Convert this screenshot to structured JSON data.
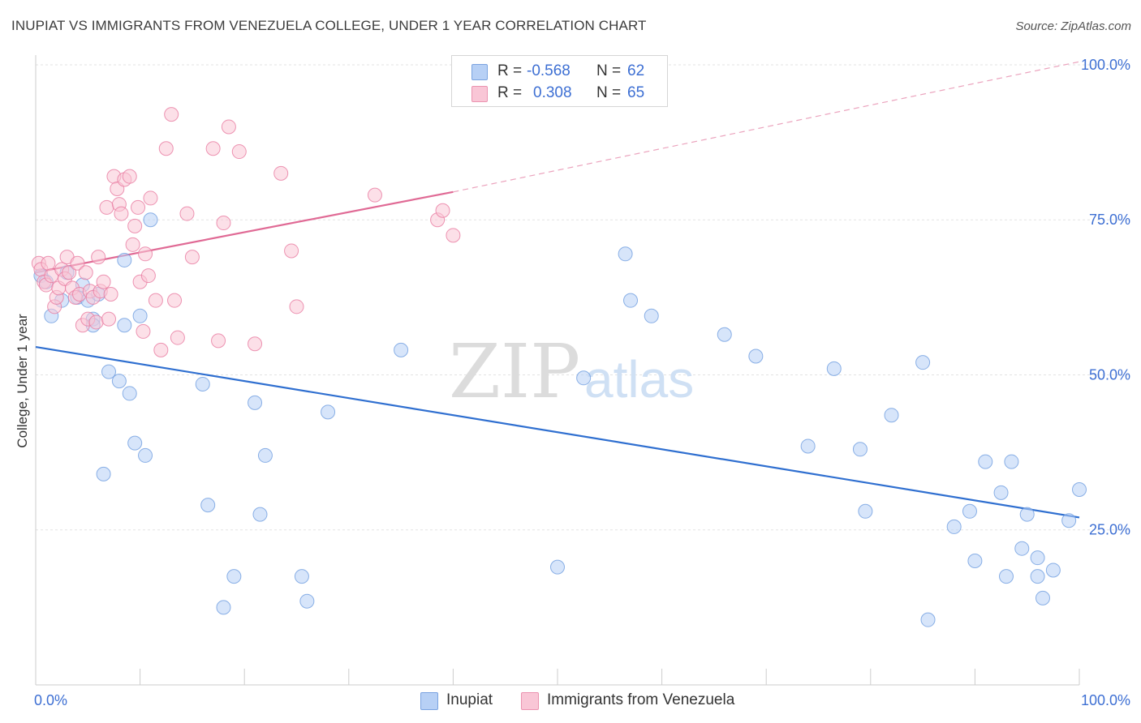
{
  "title": "INUPIAT VS IMMIGRANTS FROM VENEZUELA COLLEGE, UNDER 1 YEAR CORRELATION CHART",
  "source": "Source: ZipAtlas.com",
  "watermark": {
    "zip": "ZIP",
    "atlas": "atlas"
  },
  "legend_top": {
    "rows": [
      {
        "r_label": "R =",
        "r_value": "-0.568",
        "n_label": "N =",
        "n_value": "62",
        "fill": "#b7d0f5",
        "stroke": "#7aa3e0"
      },
      {
        "r_label": "R =",
        "r_value": "0.308",
        "n_label": "N =",
        "n_value": "65",
        "fill": "#f9c6d6",
        "stroke": "#eb93b0"
      }
    ]
  },
  "legend_bottom": [
    {
      "label": "Inupiat",
      "fill": "#b7d0f5",
      "stroke": "#7aa3e0"
    },
    {
      "label": "Immigrants from Venezuela",
      "fill": "#f9c6d6",
      "stroke": "#eb93b0"
    }
  ],
  "chart_data": {
    "type": "scatter",
    "title": "INUPIAT VS IMMIGRANTS FROM VENEZUELA COLLEGE, UNDER 1 YEAR CORRELATION CHART",
    "xlabel": "",
    "ylabel": "College, Under 1 year",
    "xlim": [
      0,
      100
    ],
    "ylim": [
      0,
      103
    ],
    "x_tick_labels": [
      "0.0%",
      "100.0%"
    ],
    "y_ticks": [
      25,
      50,
      75,
      100
    ],
    "y_tick_labels": [
      "25.0%",
      "50.0%",
      "75.0%",
      "100.0%"
    ],
    "grid": true,
    "legend_placement": "top-center",
    "series": [
      {
        "name": "Inupiat",
        "color": "#6f9de0",
        "fill": "#b7d0f5",
        "points": [
          [
            0.5,
            66.0
          ],
          [
            1.0,
            65.0
          ],
          [
            1.5,
            59.5
          ],
          [
            2.5,
            62.0
          ],
          [
            3.0,
            66.5
          ],
          [
            4.0,
            62.5
          ],
          [
            4.5,
            64.5
          ],
          [
            5.0,
            62.0
          ],
          [
            5.5,
            59.0
          ],
          [
            5.5,
            58.0
          ],
          [
            6.0,
            63.0
          ],
          [
            6.5,
            34.0
          ],
          [
            7.0,
            50.5
          ],
          [
            8.0,
            49.0
          ],
          [
            8.5,
            58.0
          ],
          [
            8.5,
            68.5
          ],
          [
            9.0,
            47.0
          ],
          [
            9.5,
            39.0
          ],
          [
            10.0,
            59.5
          ],
          [
            10.5,
            37.0
          ],
          [
            11.0,
            75.0
          ],
          [
            16.0,
            48.5
          ],
          [
            16.5,
            29.0
          ],
          [
            18.0,
            12.5
          ],
          [
            19.0,
            17.5
          ],
          [
            21.0,
            45.5
          ],
          [
            21.5,
            27.5
          ],
          [
            22.0,
            37.0
          ],
          [
            25.5,
            17.5
          ],
          [
            26.0,
            13.5
          ],
          [
            28.0,
            44.0
          ],
          [
            35.0,
            54.0
          ],
          [
            50.0,
            19.0
          ],
          [
            52.5,
            49.5
          ],
          [
            56.5,
            69.5
          ],
          [
            57.0,
            62.0
          ],
          [
            59.0,
            59.5
          ],
          [
            66.0,
            56.5
          ],
          [
            69.0,
            53.0
          ],
          [
            74.0,
            38.5
          ],
          [
            76.5,
            51.0
          ],
          [
            79.0,
            38.0
          ],
          [
            79.5,
            28.0
          ],
          [
            82.0,
            43.5
          ],
          [
            85.0,
            52.0
          ],
          [
            85.5,
            10.5
          ],
          [
            88.0,
            25.5
          ],
          [
            89.5,
            28.0
          ],
          [
            90.0,
            20.0
          ],
          [
            91.0,
            36.0
          ],
          [
            92.5,
            31.0
          ],
          [
            93.0,
            17.5
          ],
          [
            93.5,
            36.0
          ],
          [
            94.5,
            22.0
          ],
          [
            95.0,
            27.5
          ],
          [
            96.0,
            20.5
          ],
          [
            96.0,
            17.5
          ],
          [
            96.5,
            14.0
          ],
          [
            97.5,
            18.5
          ],
          [
            99.0,
            26.5
          ],
          [
            100.0,
            31.5
          ]
        ],
        "trend": {
          "x": [
            0,
            100
          ],
          "y": [
            54.5,
            27.0
          ]
        }
      },
      {
        "name": "Immigrants from Venezuela",
        "color": "#e97aa0",
        "fill": "#f9c6d6",
        "points": [
          [
            0.3,
            68.0
          ],
          [
            0.5,
            67.0
          ],
          [
            0.8,
            65.0
          ],
          [
            1.0,
            64.5
          ],
          [
            1.2,
            68.0
          ],
          [
            1.5,
            66.0
          ],
          [
            1.8,
            61.0
          ],
          [
            2.0,
            62.5
          ],
          [
            2.2,
            64.0
          ],
          [
            2.5,
            67.0
          ],
          [
            2.8,
            65.5
          ],
          [
            3.0,
            69.0
          ],
          [
            3.2,
            66.5
          ],
          [
            3.5,
            64.0
          ],
          [
            3.8,
            62.5
          ],
          [
            4.0,
            68.0
          ],
          [
            4.2,
            63.0
          ],
          [
            4.5,
            58.0
          ],
          [
            4.8,
            66.5
          ],
          [
            5.0,
            59.0
          ],
          [
            5.2,
            63.5
          ],
          [
            5.5,
            62.5
          ],
          [
            5.8,
            58.5
          ],
          [
            6.0,
            69.0
          ],
          [
            6.2,
            63.5
          ],
          [
            6.5,
            65.0
          ],
          [
            6.8,
            77.0
          ],
          [
            7.0,
            59.0
          ],
          [
            7.2,
            63.0
          ],
          [
            7.5,
            82.0
          ],
          [
            7.8,
            80.0
          ],
          [
            8.0,
            77.5
          ],
          [
            8.2,
            76.0
          ],
          [
            8.5,
            81.5
          ],
          [
            9.0,
            82.0
          ],
          [
            9.3,
            71.0
          ],
          [
            9.5,
            74.0
          ],
          [
            9.8,
            77.0
          ],
          [
            10.0,
            65.0
          ],
          [
            10.3,
            57.0
          ],
          [
            10.5,
            69.5
          ],
          [
            10.8,
            66.0
          ],
          [
            11.0,
            78.5
          ],
          [
            11.5,
            62.0
          ],
          [
            12.0,
            54.0
          ],
          [
            12.5,
            86.5
          ],
          [
            13.0,
            92.0
          ],
          [
            13.3,
            62.0
          ],
          [
            13.6,
            56.0
          ],
          [
            14.5,
            76.0
          ],
          [
            15.0,
            69.0
          ],
          [
            17.0,
            86.5
          ],
          [
            17.5,
            55.5
          ],
          [
            18.0,
            74.5
          ],
          [
            18.5,
            90.0
          ],
          [
            19.5,
            86.0
          ],
          [
            21.0,
            55.0
          ],
          [
            23.5,
            82.5
          ],
          [
            24.5,
            70.0
          ],
          [
            25.0,
            61.0
          ],
          [
            32.5,
            79.0
          ],
          [
            38.5,
            75.0
          ],
          [
            39.0,
            76.5
          ],
          [
            40.0,
            72.5
          ]
        ],
        "trend": {
          "x": [
            0,
            40
          ],
          "y": [
            66.5,
            79.5
          ]
        },
        "trend_extension": {
          "x": [
            40,
            100
          ],
          "y": [
            79.5,
            100.5
          ]
        }
      }
    ]
  }
}
